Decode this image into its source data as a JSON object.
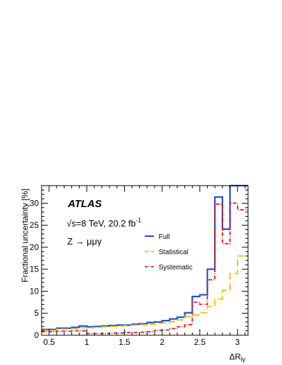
{
  "chart_data": {
    "type": "line",
    "style": "step",
    "xlabel": "ΔR",
    "xlabel_subscript": "lγ",
    "ylabel": "Fractional uncertainty [%]",
    "xlim": [
      0.4,
      3.14
    ],
    "ylim": [
      0,
      34
    ],
    "x_ticks": [
      0.5,
      1,
      1.5,
      2,
      2.5,
      3
    ],
    "x_tick_labels": [
      "0.5",
      "1",
      "1.5",
      "2",
      "2.5",
      "3"
    ],
    "y_ticks": [
      0,
      5,
      10,
      15,
      20,
      25,
      30
    ],
    "y_tick_labels": [
      "0",
      "5",
      "10",
      "15",
      "20",
      "25",
      "30"
    ],
    "bin_edges": [
      0.4,
      0.6,
      0.8,
      0.9,
      1.0,
      1.1,
      1.2,
      1.3,
      1.4,
      1.5,
      1.6,
      1.7,
      1.8,
      1.9,
      2.0,
      2.1,
      2.2,
      2.3,
      2.4,
      2.5,
      2.6,
      2.7,
      2.8,
      2.9,
      3.0,
      3.14
    ],
    "series": [
      {
        "name": "Full",
        "color": "#1f4fd8",
        "dash": "solid",
        "values": [
          1.3,
          1.6,
          1.8,
          2.1,
          1.9,
          2.0,
          2.1,
          2.2,
          2.3,
          2.3,
          2.5,
          2.6,
          2.9,
          3.0,
          3.3,
          3.7,
          4.1,
          5.1,
          8.8,
          9.2,
          15.0,
          31.4,
          24.1,
          34.0,
          34.0
        ]
      },
      {
        "name": "Statistical",
        "color": "#f0c000",
        "dash": "long",
        "values": [
          1.1,
          1.4,
          1.5,
          1.7,
          1.7,
          1.8,
          1.9,
          2.0,
          2.1,
          2.2,
          2.3,
          2.4,
          2.5,
          2.7,
          2.8,
          3.1,
          3.5,
          4.2,
          4.6,
          5.1,
          6.5,
          8.2,
          10.2,
          14.0,
          18.0
        ]
      },
      {
        "name": "Systematic",
        "color": "#e01010",
        "dash": "dashdot",
        "values": [
          0.8,
          0.9,
          1.0,
          1.0,
          0.4,
          0.4,
          0.4,
          0.5,
          0.5,
          0.6,
          0.6,
          0.7,
          0.8,
          1.1,
          1.2,
          1.5,
          1.9,
          2.4,
          7.5,
          7.0,
          12.6,
          29.8,
          20.8,
          30.0,
          28.5
        ]
      }
    ],
    "grid": false,
    "legend_position": "center-right"
  },
  "annotations": {
    "experiment": "ATLAS",
    "energy_prefix": "√s=8 TeV, 20.2 fb",
    "energy_sup": "-1",
    "process": "Z → μμγ"
  }
}
